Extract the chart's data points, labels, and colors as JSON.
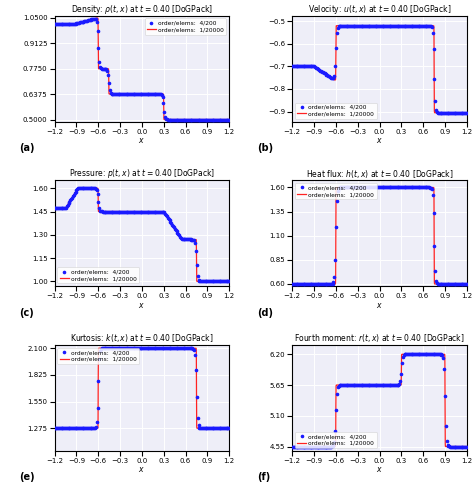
{
  "title_density": "Density: $\\rho(t,x)$ at $t=0.40$ [DoGPack]",
  "title_velocity": "Velocity: $u(t,x)$ at $t=0.40$ [DoGPack]",
  "title_pressure": "Pressure: $p(t,x)$ at $t=0.40$ [DoGPack]",
  "title_heatflux": "Heat flux: $h(t,x)$ at $t=0.40$ [DoGPack]",
  "title_kurtosis": "Kurtosis: $k(t,x)$ at $t=0.40$ [DoGPack]",
  "title_fourth": "Fourth moment: $r(t,x)$ at $t=0.40$ [DoGPack]",
  "xlabel": "$x$",
  "legend_dot": "order/elems:  4/200",
  "legend_line": "order/elems:  1/20000",
  "dot_color": "#1a1aff",
  "line_color": "#ff2222",
  "panel_labels": [
    "(a)",
    "(b)",
    "(c)",
    "(d)",
    "(e)",
    "(f)"
  ],
  "xlim": [
    -1.2,
    1.2
  ],
  "xticks": [
    -1.2,
    -0.9,
    -0.6,
    -0.3,
    0.0,
    0.3,
    0.6,
    0.9,
    1.2
  ],
  "density_ylim": [
    0.488,
    1.063
  ],
  "density_yticks": [
    0.5,
    0.6375,
    0.775,
    0.9125,
    1.05
  ],
  "velocity_ylim": [
    -0.945,
    -0.475
  ],
  "velocity_yticks": [
    -0.9,
    -0.8,
    -0.7,
    -0.6,
    -0.5
  ],
  "pressure_ylim": [
    0.968,
    1.652
  ],
  "pressure_yticks": [
    1.0,
    1.15,
    1.3,
    1.45,
    1.6
  ],
  "heatflux_ylim": [
    0.575,
    1.675
  ],
  "heatflux_yticks": [
    0.6,
    0.85,
    1.1,
    1.35,
    1.6
  ],
  "kurtosis_ylim": [
    1.04,
    2.135
  ],
  "kurtosis_yticks": [
    1.275,
    1.55,
    1.825,
    2.1
  ],
  "fourth_ylim": [
    4.47,
    6.37
  ],
  "fourth_yticks": [
    4.55,
    5.1,
    5.65,
    6.2
  ],
  "bg_color": "#eeeef8"
}
